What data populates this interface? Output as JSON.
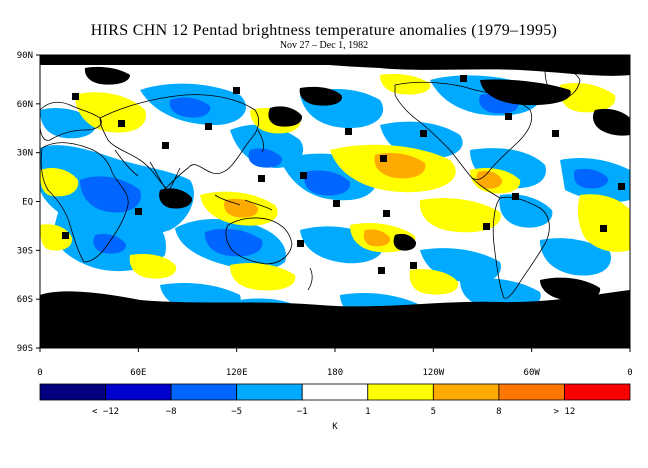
{
  "title": "HIRS CHN 12 Pentad brightness temperature anomalies (1979–1995)",
  "subtitle": "Nov 27 – Dec 1, 1982",
  "lat_labels": [
    "90N",
    "60N",
    "30N",
    "EQ",
    "30S",
    "60S",
    "90S"
  ],
  "lon_labels": [
    "0",
    "60E",
    "120E",
    "180",
    "120W",
    "60W",
    "0"
  ],
  "colorbar": {
    "unit": "K",
    "tick_labels": [
      "< −12",
      "−8",
      "−5",
      "−1",
      "1",
      "5",
      "8",
      "> 12"
    ],
    "colors": [
      "#00007f",
      "#0000cc",
      "#0066ff",
      "#00aaff",
      "#ffffff",
      "#ffff00",
      "#ffaa00",
      "#ff7700",
      "#ff0000"
    ]
  }
}
